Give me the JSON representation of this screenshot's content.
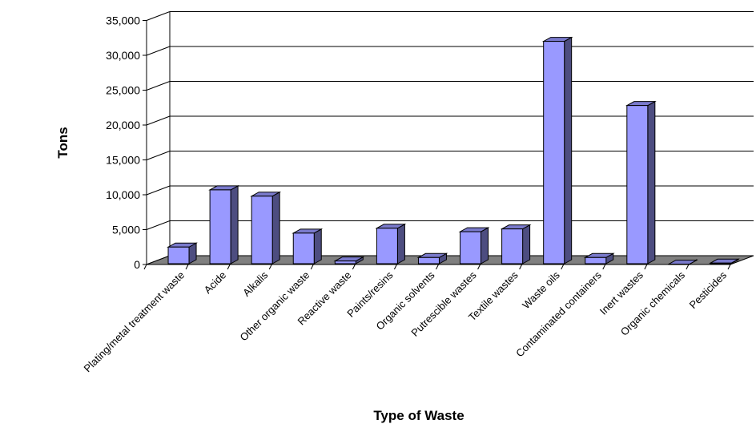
{
  "chart_data": {
    "type": "bar",
    "style": "3d-column",
    "title": "",
    "xlabel": "Type of Waste",
    "ylabel": "Tons",
    "ylim": [
      0,
      35000
    ],
    "yticks": [
      0,
      5000,
      10000,
      15000,
      20000,
      25000,
      30000,
      35000
    ],
    "ytick_labels": [
      "0",
      "5,000",
      "10,000",
      "15,000",
      "20,000",
      "25,000",
      "30,000",
      "35,000"
    ],
    "grid": true,
    "legend": "none",
    "categories": [
      "Plating/metal treatment waste",
      "Acide",
      "Alkalis",
      "Other organic waste",
      "Reactive waste",
      "Paints/resins",
      "Organic solvents",
      "Putrescible wastes",
      "Textile wastes",
      "Waste oils",
      "Contaminated containers",
      "Inert wastes",
      "Organic chemicals",
      "Pesticides"
    ],
    "values": [
      2500,
      10700,
      9800,
      4500,
      500,
      5200,
      1000,
      4700,
      5100,
      32000,
      1000,
      22800,
      50,
      200
    ],
    "colors": {
      "bar_front": "#9999ff",
      "bar_side": "#4d4d80",
      "bar_top": "#7a7acc",
      "floor": "#808080",
      "gridline": "#000000"
    }
  }
}
